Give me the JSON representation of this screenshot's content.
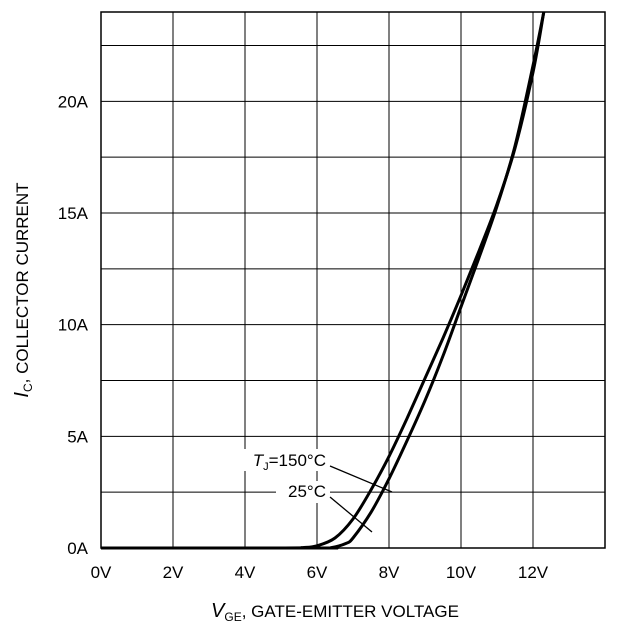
{
  "chart_data": {
    "type": "line",
    "title": "",
    "xlabel": {
      "symbol": "V",
      "subscript": "GE",
      "text": ", GATE-EMITTER VOLTAGE"
    },
    "ylabel": {
      "symbol": "I",
      "subscript": "C",
      "text": ", COLLECTOR CURRENT"
    },
    "xlim": [
      0,
      14
    ],
    "ylim": [
      0,
      24
    ],
    "x_ticks": [
      0,
      2,
      4,
      6,
      8,
      10,
      12
    ],
    "x_tick_labels": [
      "0V",
      "2V",
      "4V",
      "6V",
      "8V",
      "10V",
      "12V"
    ],
    "y_ticks": [
      0,
      5,
      10,
      15,
      20
    ],
    "y_tick_labels": [
      "0A",
      "5A",
      "10A",
      "15A",
      "20A"
    ],
    "grid": true,
    "series": [
      {
        "name": "150°C",
        "x": [
          0,
          5.0,
          5.6,
          6.0,
          6.5,
          7.0,
          7.5,
          8.0,
          8.5,
          9.0,
          9.5,
          10.0,
          10.5,
          11.0,
          11.5,
          12.0,
          12.3
        ],
        "y": [
          0,
          0,
          0.02,
          0.1,
          0.45,
          1.3,
          2.6,
          4.1,
          5.8,
          7.6,
          9.4,
          11.3,
          13.3,
          15.4,
          17.9,
          21.3,
          24
        ]
      },
      {
        "name": "25°C",
        "x": [
          0,
          6.0,
          6.4,
          6.8,
          7.0,
          7.5,
          8.0,
          8.5,
          9.0,
          9.5,
          10.0,
          10.5,
          11.0,
          11.5,
          12.0,
          12.3
        ],
        "y": [
          0,
          0,
          0.02,
          0.2,
          0.45,
          1.6,
          3.1,
          4.8,
          6.6,
          8.6,
          10.8,
          13.0,
          15.3,
          18.0,
          21.6,
          24
        ]
      }
    ],
    "annotations": [
      {
        "symbol": "T",
        "subscript": "J",
        "text": "=150°C"
      },
      {
        "text": "25°C"
      }
    ]
  }
}
